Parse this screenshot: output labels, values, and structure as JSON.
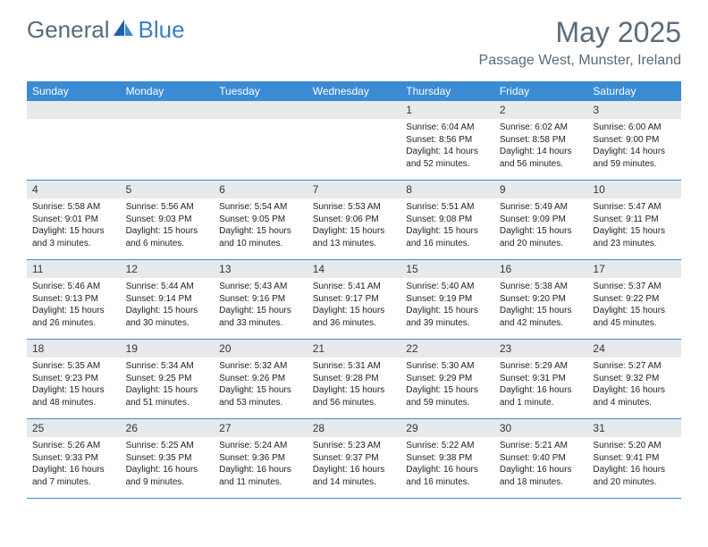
{
  "brand": {
    "part1": "General",
    "part2": "Blue"
  },
  "title": "May 2025",
  "location": "Passage West, Munster, Ireland",
  "colors": {
    "header_bg": "#3b8bd4",
    "header_text": "#ffffff",
    "daynum_bg": "#e8e9eb",
    "text": "#222222",
    "title_color": "#5a6a78",
    "brand_gray": "#5a6a78",
    "brand_blue": "#3b7fc4",
    "row_border": "#3b8bd4"
  },
  "day_names": [
    "Sunday",
    "Monday",
    "Tuesday",
    "Wednesday",
    "Thursday",
    "Friday",
    "Saturday"
  ],
  "weeks": [
    [
      {
        "n": "",
        "sr": "",
        "ss": "",
        "dl": ""
      },
      {
        "n": "",
        "sr": "",
        "ss": "",
        "dl": ""
      },
      {
        "n": "",
        "sr": "",
        "ss": "",
        "dl": ""
      },
      {
        "n": "",
        "sr": "",
        "ss": "",
        "dl": ""
      },
      {
        "n": "1",
        "sr": "Sunrise: 6:04 AM",
        "ss": "Sunset: 8:56 PM",
        "dl": "Daylight: 14 hours and 52 minutes."
      },
      {
        "n": "2",
        "sr": "Sunrise: 6:02 AM",
        "ss": "Sunset: 8:58 PM",
        "dl": "Daylight: 14 hours and 56 minutes."
      },
      {
        "n": "3",
        "sr": "Sunrise: 6:00 AM",
        "ss": "Sunset: 9:00 PM",
        "dl": "Daylight: 14 hours and 59 minutes."
      }
    ],
    [
      {
        "n": "4",
        "sr": "Sunrise: 5:58 AM",
        "ss": "Sunset: 9:01 PM",
        "dl": "Daylight: 15 hours and 3 minutes."
      },
      {
        "n": "5",
        "sr": "Sunrise: 5:56 AM",
        "ss": "Sunset: 9:03 PM",
        "dl": "Daylight: 15 hours and 6 minutes."
      },
      {
        "n": "6",
        "sr": "Sunrise: 5:54 AM",
        "ss": "Sunset: 9:05 PM",
        "dl": "Daylight: 15 hours and 10 minutes."
      },
      {
        "n": "7",
        "sr": "Sunrise: 5:53 AM",
        "ss": "Sunset: 9:06 PM",
        "dl": "Daylight: 15 hours and 13 minutes."
      },
      {
        "n": "8",
        "sr": "Sunrise: 5:51 AM",
        "ss": "Sunset: 9:08 PM",
        "dl": "Daylight: 15 hours and 16 minutes."
      },
      {
        "n": "9",
        "sr": "Sunrise: 5:49 AM",
        "ss": "Sunset: 9:09 PM",
        "dl": "Daylight: 15 hours and 20 minutes."
      },
      {
        "n": "10",
        "sr": "Sunrise: 5:47 AM",
        "ss": "Sunset: 9:11 PM",
        "dl": "Daylight: 15 hours and 23 minutes."
      }
    ],
    [
      {
        "n": "11",
        "sr": "Sunrise: 5:46 AM",
        "ss": "Sunset: 9:13 PM",
        "dl": "Daylight: 15 hours and 26 minutes."
      },
      {
        "n": "12",
        "sr": "Sunrise: 5:44 AM",
        "ss": "Sunset: 9:14 PM",
        "dl": "Daylight: 15 hours and 30 minutes."
      },
      {
        "n": "13",
        "sr": "Sunrise: 5:43 AM",
        "ss": "Sunset: 9:16 PM",
        "dl": "Daylight: 15 hours and 33 minutes."
      },
      {
        "n": "14",
        "sr": "Sunrise: 5:41 AM",
        "ss": "Sunset: 9:17 PM",
        "dl": "Daylight: 15 hours and 36 minutes."
      },
      {
        "n": "15",
        "sr": "Sunrise: 5:40 AM",
        "ss": "Sunset: 9:19 PM",
        "dl": "Daylight: 15 hours and 39 minutes."
      },
      {
        "n": "16",
        "sr": "Sunrise: 5:38 AM",
        "ss": "Sunset: 9:20 PM",
        "dl": "Daylight: 15 hours and 42 minutes."
      },
      {
        "n": "17",
        "sr": "Sunrise: 5:37 AM",
        "ss": "Sunset: 9:22 PM",
        "dl": "Daylight: 15 hours and 45 minutes."
      }
    ],
    [
      {
        "n": "18",
        "sr": "Sunrise: 5:35 AM",
        "ss": "Sunset: 9:23 PM",
        "dl": "Daylight: 15 hours and 48 minutes."
      },
      {
        "n": "19",
        "sr": "Sunrise: 5:34 AM",
        "ss": "Sunset: 9:25 PM",
        "dl": "Daylight: 15 hours and 51 minutes."
      },
      {
        "n": "20",
        "sr": "Sunrise: 5:32 AM",
        "ss": "Sunset: 9:26 PM",
        "dl": "Daylight: 15 hours and 53 minutes."
      },
      {
        "n": "21",
        "sr": "Sunrise: 5:31 AM",
        "ss": "Sunset: 9:28 PM",
        "dl": "Daylight: 15 hours and 56 minutes."
      },
      {
        "n": "22",
        "sr": "Sunrise: 5:30 AM",
        "ss": "Sunset: 9:29 PM",
        "dl": "Daylight: 15 hours and 59 minutes."
      },
      {
        "n": "23",
        "sr": "Sunrise: 5:29 AM",
        "ss": "Sunset: 9:31 PM",
        "dl": "Daylight: 16 hours and 1 minute."
      },
      {
        "n": "24",
        "sr": "Sunrise: 5:27 AM",
        "ss": "Sunset: 9:32 PM",
        "dl": "Daylight: 16 hours and 4 minutes."
      }
    ],
    [
      {
        "n": "25",
        "sr": "Sunrise: 5:26 AM",
        "ss": "Sunset: 9:33 PM",
        "dl": "Daylight: 16 hours and 7 minutes."
      },
      {
        "n": "26",
        "sr": "Sunrise: 5:25 AM",
        "ss": "Sunset: 9:35 PM",
        "dl": "Daylight: 16 hours and 9 minutes."
      },
      {
        "n": "27",
        "sr": "Sunrise: 5:24 AM",
        "ss": "Sunset: 9:36 PM",
        "dl": "Daylight: 16 hours and 11 minutes."
      },
      {
        "n": "28",
        "sr": "Sunrise: 5:23 AM",
        "ss": "Sunset: 9:37 PM",
        "dl": "Daylight: 16 hours and 14 minutes."
      },
      {
        "n": "29",
        "sr": "Sunrise: 5:22 AM",
        "ss": "Sunset: 9:38 PM",
        "dl": "Daylight: 16 hours and 16 minutes."
      },
      {
        "n": "30",
        "sr": "Sunrise: 5:21 AM",
        "ss": "Sunset: 9:40 PM",
        "dl": "Daylight: 16 hours and 18 minutes."
      },
      {
        "n": "31",
        "sr": "Sunrise: 5:20 AM",
        "ss": "Sunset: 9:41 PM",
        "dl": "Daylight: 16 hours and 20 minutes."
      }
    ]
  ]
}
